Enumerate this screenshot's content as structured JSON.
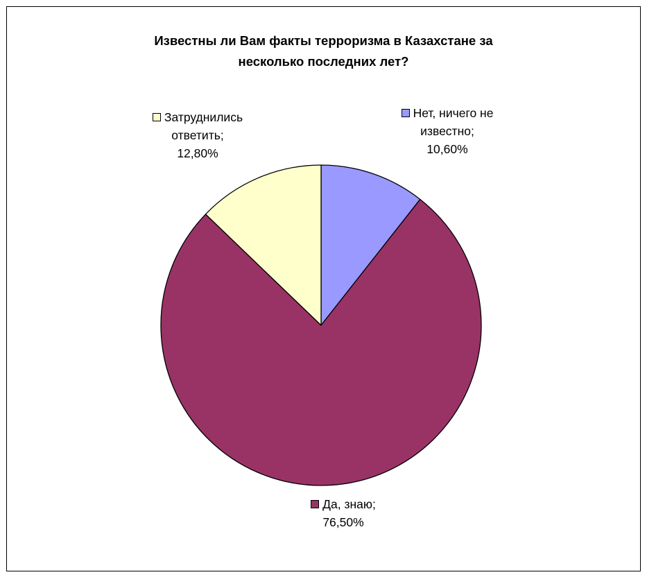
{
  "chart_data": {
    "type": "pie",
    "title": "Известны ли Вам факты терроризма в Казахстане за несколько последних лет?",
    "title_lines": [
      "Известны ли Вам факты терроризма в Казахстане за",
      "несколько последних лет?"
    ],
    "slices": [
      {
        "label": "Нет, ничего не известно;",
        "label_lines": [
          "Нет, ничего не",
          "известно;"
        ],
        "value": 10.6,
        "value_text": "10,60%",
        "color": "#9999FF"
      },
      {
        "label": "Да, знаю;",
        "label_lines": [
          "Да, знаю;"
        ],
        "value": 76.5,
        "value_text": "76,50%",
        "color": "#993366"
      },
      {
        "label": "Затруднились ответить;",
        "label_lines": [
          "Затруднились",
          "ответить;"
        ],
        "value": 12.8,
        "value_text": "12,80%",
        "color": "#FFFFCC"
      }
    ]
  }
}
